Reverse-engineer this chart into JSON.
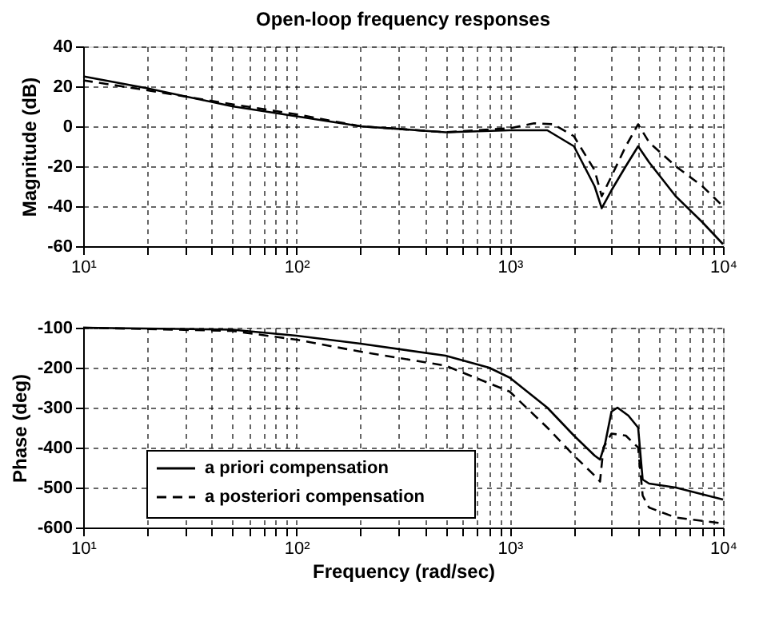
{
  "chart_data": [
    {
      "type": "line",
      "title": "Open-loop frequency responses",
      "ylabel": "Magnitude (dB)",
      "log": "x",
      "grid": true,
      "legend": false,
      "xlim": [
        10,
        10000
      ],
      "ylim": [
        -60,
        40
      ],
      "yticks": [
        -60,
        -40,
        -20,
        0,
        20,
        40
      ],
      "xticks": [
        {
          "value": 10,
          "label": "10¹"
        },
        {
          "value": 20,
          "label": null
        },
        {
          "value": 30,
          "label": null
        },
        {
          "value": 40,
          "label": null
        },
        {
          "value": 50,
          "label": null
        },
        {
          "value": 60,
          "label": null
        },
        {
          "value": 70,
          "label": null
        },
        {
          "value": 80,
          "label": null
        },
        {
          "value": 90,
          "label": null
        },
        {
          "value": 100,
          "label": "10²"
        },
        {
          "value": 200,
          "label": null
        },
        {
          "value": 300,
          "label": null
        },
        {
          "value": 400,
          "label": null
        },
        {
          "value": 500,
          "label": null
        },
        {
          "value": 600,
          "label": null
        },
        {
          "value": 700,
          "label": null
        },
        {
          "value": 800,
          "label": null
        },
        {
          "value": 900,
          "label": null
        },
        {
          "value": 1000,
          "label": "10³"
        },
        {
          "value": 2000,
          "label": null
        },
        {
          "value": 3000,
          "label": null
        },
        {
          "value": 4000,
          "label": null
        },
        {
          "value": 5000,
          "label": null
        },
        {
          "value": 6000,
          "label": null
        },
        {
          "value": 7000,
          "label": null
        },
        {
          "value": 8000,
          "label": null
        },
        {
          "value": 9000,
          "label": null
        },
        {
          "value": 10000,
          "label": "10⁴"
        }
      ],
      "series": [
        {
          "color": "#000000",
          "line_style": "solid",
          "x": [
            10,
            20,
            50,
            100,
            200,
            500,
            1000,
            1500,
            2000,
            2500,
            2700,
            3000,
            3500,
            4000,
            4500,
            6000,
            8000,
            10000
          ],
          "values": [
            25,
            19,
            10,
            5,
            0,
            -3,
            -2,
            -2,
            -10,
            -30,
            -41,
            -32,
            -20,
            -10,
            -18,
            -35,
            -48,
            -59
          ]
        },
        {
          "color": "#000000",
          "line_style": "dashed",
          "x": [
            10,
            20,
            50,
            100,
            200,
            500,
            1000,
            1300,
            1600,
            2000,
            2500,
            2700,
            3000,
            3500,
            4000,
            4500,
            6000,
            8000,
            10000
          ],
          "values": [
            23,
            18,
            11,
            6,
            0,
            -3,
            -1,
            1.5,
            1,
            -5,
            -22,
            -35,
            -25,
            -10,
            1,
            -8,
            -20,
            -30,
            -40
          ]
        }
      ]
    },
    {
      "type": "line",
      "xlabel": "Frequency (rad/sec)",
      "ylabel": "Phase (deg)",
      "log": "x",
      "grid": true,
      "legend": "bottom left",
      "xlim": [
        10,
        10000
      ],
      "ylim": [
        -600,
        -100
      ],
      "yticks": [
        -600,
        -500,
        -400,
        -300,
        -200,
        -100
      ],
      "xticks": [
        {
          "value": 10,
          "label": "10¹"
        },
        {
          "value": 20,
          "label": null
        },
        {
          "value": 30,
          "label": null
        },
        {
          "value": 40,
          "label": null
        },
        {
          "value": 50,
          "label": null
        },
        {
          "value": 60,
          "label": null
        },
        {
          "value": 70,
          "label": null
        },
        {
          "value": 80,
          "label": null
        },
        {
          "value": 90,
          "label": null
        },
        {
          "value": 100,
          "label": "10²"
        },
        {
          "value": 200,
          "label": null
        },
        {
          "value": 300,
          "label": null
        },
        {
          "value": 400,
          "label": null
        },
        {
          "value": 500,
          "label": null
        },
        {
          "value": 600,
          "label": null
        },
        {
          "value": 700,
          "label": null
        },
        {
          "value": 800,
          "label": null
        },
        {
          "value": 900,
          "label": null
        },
        {
          "value": 1000,
          "label": "10³"
        },
        {
          "value": 2000,
          "label": null
        },
        {
          "value": 3000,
          "label": null
        },
        {
          "value": 4000,
          "label": null
        },
        {
          "value": 5000,
          "label": null
        },
        {
          "value": 6000,
          "label": null
        },
        {
          "value": 7000,
          "label": null
        },
        {
          "value": 8000,
          "label": null
        },
        {
          "value": 9000,
          "label": null
        },
        {
          "value": 10000,
          "label": "10⁴"
        }
      ],
      "series": [
        {
          "name": "a priori compensation",
          "color": "#000000",
          "line_style": "solid",
          "x": [
            10,
            50,
            100,
            200,
            500,
            800,
            1000,
            1500,
            2000,
            2500,
            2650,
            2800,
            3000,
            3200,
            3600,
            4000,
            4200,
            4500,
            6000,
            10000
          ],
          "values": [
            -100,
            -105,
            -120,
            -140,
            -170,
            -200,
            -225,
            -300,
            -370,
            -420,
            -430,
            -390,
            -310,
            -300,
            -320,
            -350,
            -480,
            -490,
            -500,
            -530
          ]
        },
        {
          "name": "a posteriori compensation",
          "color": "#000000",
          "line_style": "dashed",
          "x": [
            10,
            50,
            100,
            200,
            500,
            1000,
            1500,
            2000,
            2500,
            2650,
            2750,
            3000,
            3500,
            4000,
            4200,
            4500,
            6000,
            10000
          ],
          "values": [
            -100,
            -108,
            -130,
            -160,
            -195,
            -260,
            -350,
            -420,
            -470,
            -485,
            -400,
            -365,
            -370,
            -400,
            -520,
            -550,
            -575,
            -590
          ]
        }
      ]
    }
  ]
}
